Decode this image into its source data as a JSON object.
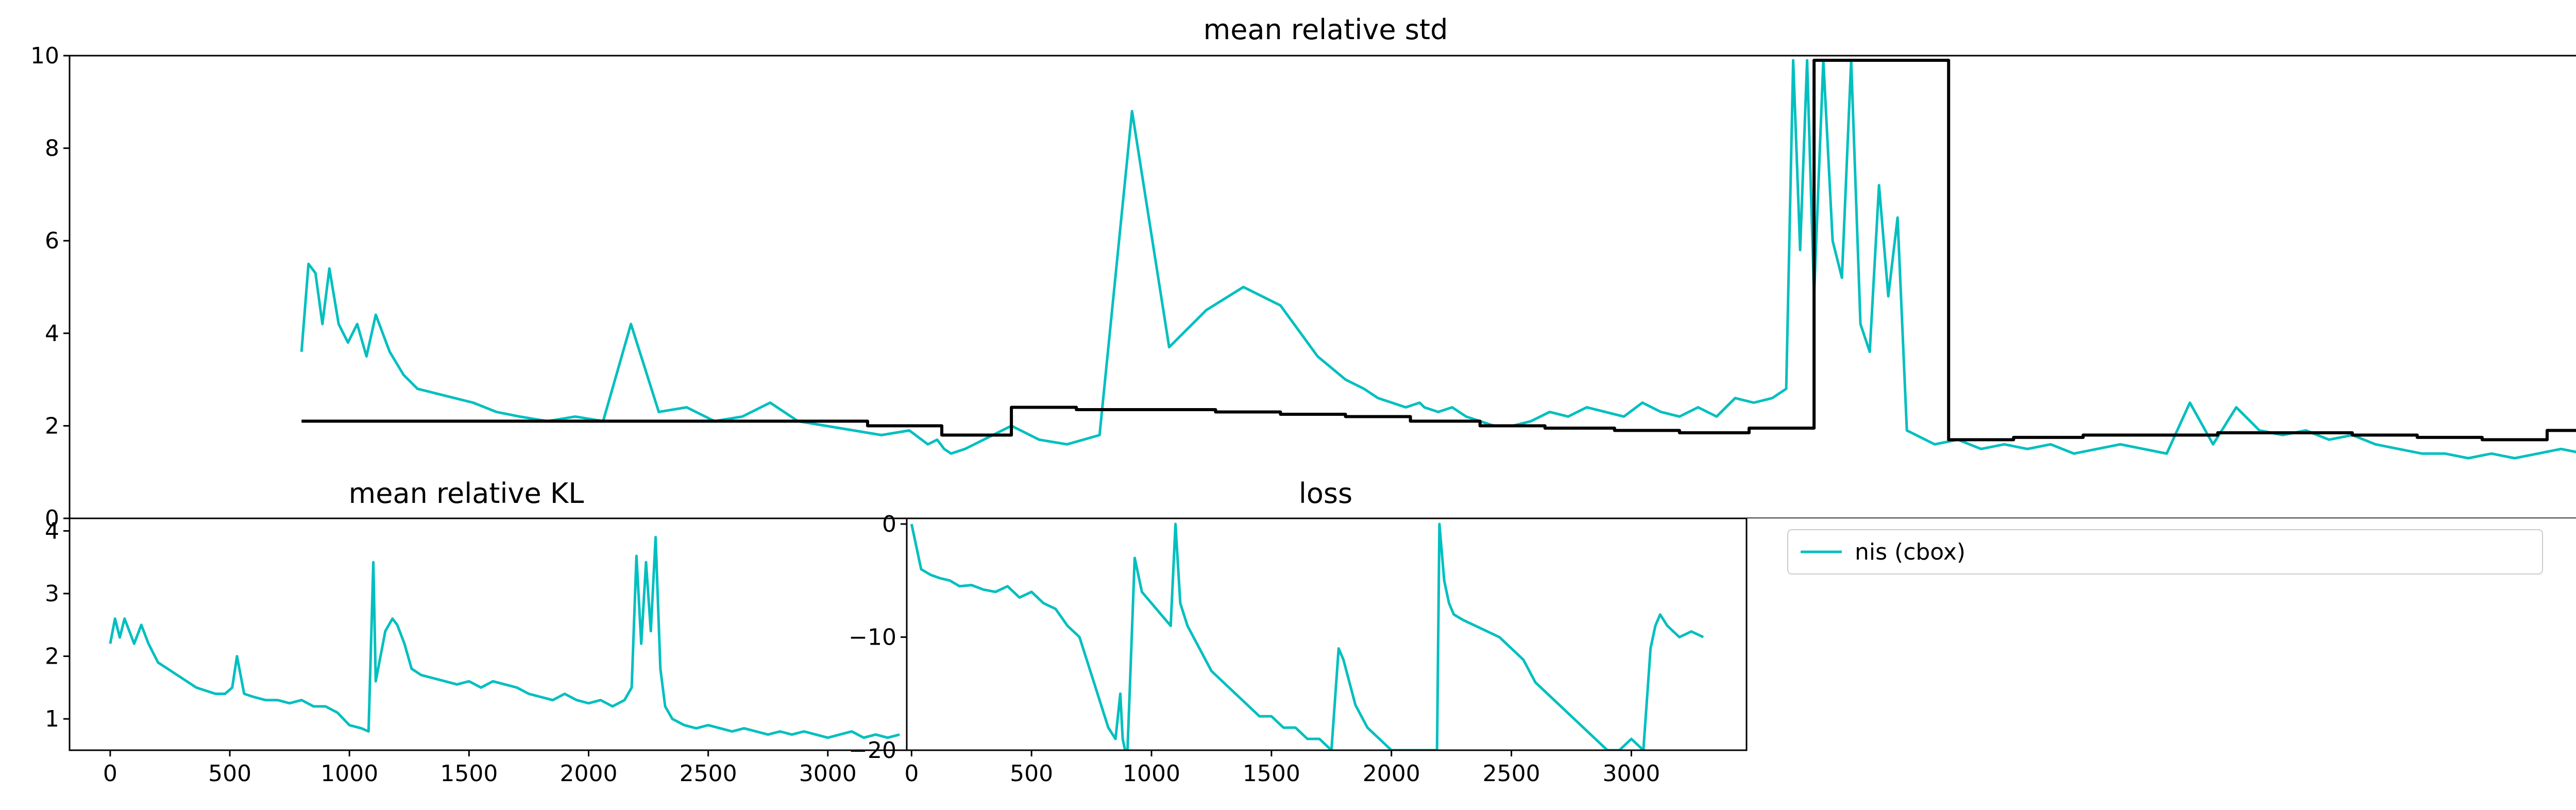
{
  "chart_data": [
    {
      "type": "line",
      "title": "mean relative std",
      "xlabel": "",
      "ylabel": "",
      "xlim": [
        -170,
        5260
      ],
      "ylim": [
        0,
        10
      ],
      "yticks": [
        "0",
        "2",
        "4",
        "6",
        "8",
        "10"
      ],
      "series": [
        {
          "name": "nis (cbox)",
          "color": "#00bfbf",
          "x": [
            330,
            345,
            360,
            375,
            390,
            410,
            430,
            450,
            470,
            490,
            520,
            550,
            580,
            620,
            660,
            700,
            750,
            800,
            860,
            920,
            980,
            1040,
            1100,
            1160,
            1220,
            1280,
            1340,
            1400,
            1460,
            1520,
            1580,
            1640,
            1680,
            1700,
            1715,
            1730,
            1760,
            1800,
            1860,
            1920,
            1980,
            2050,
            2120,
            2200,
            2280,
            2360,
            2440,
            2520,
            2580,
            2620,
            2650,
            2680,
            2710,
            2740,
            2750,
            2780,
            2810,
            2840,
            2870,
            2900,
            2940,
            2980,
            3020,
            3060,
            3100,
            3140,
            3180,
            3220,
            3260,
            3300,
            3340,
            3380,
            3420,
            3460,
            3500,
            3530,
            3545,
            3560,
            3575,
            3590,
            3610,
            3630,
            3650,
            3670,
            3690,
            3710,
            3730,
            3750,
            3770,
            3790,
            3810,
            3830,
            3850,
            3900,
            3950,
            4000,
            4050,
            4100,
            4150,
            4200,
            4250,
            4300,
            4350,
            4400,
            4450,
            4500,
            4550,
            4600,
            4650,
            4700,
            4750,
            4800,
            4850,
            4900,
            4950,
            5000,
            5050,
            5100,
            5150,
            5200,
            5250,
            5300
          ],
          "y": [
            3.6,
            5.5,
            5.3,
            4.2,
            5.4,
            4.2,
            3.8,
            4.2,
            3.5,
            4.4,
            3.6,
            3.1,
            2.8,
            2.7,
            2.6,
            2.5,
            2.3,
            2.2,
            2.1,
            2.2,
            2.1,
            4.2,
            2.3,
            2.4,
            2.1,
            2.2,
            2.5,
            2.1,
            2.0,
            1.9,
            1.8,
            1.9,
            1.6,
            1.7,
            1.5,
            1.4,
            1.5,
            1.7,
            2.0,
            1.7,
            1.6,
            1.8,
            8.8,
            3.7,
            4.5,
            5.0,
            4.6,
            3.5,
            3.0,
            2.8,
            2.6,
            2.5,
            2.4,
            2.5,
            2.4,
            2.3,
            2.4,
            2.2,
            2.1,
            2.0,
            2.0,
            2.1,
            2.3,
            2.2,
            2.4,
            2.3,
            2.2,
            2.5,
            2.3,
            2.2,
            2.4,
            2.2,
            2.6,
            2.5,
            2.6,
            2.8,
            9.9,
            5.8,
            9.9,
            4.8,
            9.9,
            6.0,
            5.2,
            9.9,
            4.2,
            3.6,
            7.2,
            4.8,
            6.5,
            1.9,
            1.8,
            1.7,
            1.6,
            1.7,
            1.5,
            1.6,
            1.5,
            1.6,
            1.4,
            1.5,
            1.6,
            1.5,
            1.4,
            2.5,
            1.6,
            2.4,
            1.9,
            1.8,
            1.9,
            1.7,
            1.8,
            1.6,
            1.5,
            1.4,
            1.4,
            1.3,
            1.4,
            1.3,
            1.4,
            1.5,
            1.4,
            1.4
          ]
        },
        {
          "name": "",
          "color": "#000000",
          "step": true,
          "x": [
            330,
            1550,
            1710,
            1860,
            2000,
            2150,
            2300,
            2440,
            2580,
            2720,
            2870,
            3010,
            3160,
            3300,
            3450,
            3590,
            3730,
            3880,
            4020,
            4170,
            4310,
            4460,
            4600,
            4750,
            4890,
            5030,
            5170,
            5300
          ],
          "y": [
            2.1,
            2.0,
            1.8,
            2.4,
            2.35,
            2.35,
            2.3,
            2.25,
            2.2,
            2.1,
            2.0,
            1.95,
            1.9,
            1.85,
            1.95,
            9.9,
            9.9,
            1.7,
            1.75,
            1.8,
            1.8,
            1.85,
            1.85,
            1.8,
            1.75,
            1.7,
            1.9,
            1.9
          ]
        }
      ]
    },
    {
      "type": "line",
      "title": "mean relative KL",
      "xlim": [
        -170,
        3330
      ],
      "ylim": [
        0.5,
        4.2
      ],
      "xticks": [
        "0",
        "500",
        "1000",
        "1500",
        "2000",
        "2500",
        "3000"
      ],
      "yticks": [
        "1",
        "2",
        "3",
        "4"
      ],
      "series": [
        {
          "name": "nis (cbox)",
          "color": "#00bfbf",
          "x": [
            0,
            20,
            40,
            60,
            80,
            100,
            130,
            160,
            200,
            240,
            280,
            320,
            360,
            400,
            440,
            480,
            510,
            530,
            560,
            600,
            650,
            700,
            750,
            800,
            850,
            900,
            950,
            1000,
            1050,
            1080,
            1100,
            1110,
            1130,
            1150,
            1180,
            1200,
            1230,
            1260,
            1300,
            1350,
            1400,
            1450,
            1500,
            1550,
            1600,
            1650,
            1700,
            1750,
            1800,
            1850,
            1900,
            1950,
            2000,
            2050,
            2100,
            2150,
            2180,
            2200,
            2220,
            2240,
            2260,
            2280,
            2300,
            2320,
            2350,
            2400,
            2450,
            2500,
            2550,
            2600,
            2650,
            2700,
            2750,
            2800,
            2850,
            2900,
            2950,
            3000,
            3050,
            3100,
            3150,
            3200,
            3250,
            3300
          ],
          "y": [
            2.2,
            2.6,
            2.3,
            2.6,
            2.4,
            2.2,
            2.5,
            2.2,
            1.9,
            1.8,
            1.7,
            1.6,
            1.5,
            1.45,
            1.4,
            1.4,
            1.5,
            2.0,
            1.4,
            1.35,
            1.3,
            1.3,
            1.25,
            1.3,
            1.2,
            1.2,
            1.1,
            0.9,
            0.85,
            0.8,
            3.5,
            1.6,
            2.0,
            2.4,
            2.6,
            2.5,
            2.2,
            1.8,
            1.7,
            1.65,
            1.6,
            1.55,
            1.6,
            1.5,
            1.6,
            1.55,
            1.5,
            1.4,
            1.35,
            1.3,
            1.4,
            1.3,
            1.25,
            1.3,
            1.2,
            1.3,
            1.5,
            3.6,
            2.2,
            3.5,
            2.4,
            3.9,
            1.8,
            1.2,
            1.0,
            0.9,
            0.85,
            0.9,
            0.85,
            0.8,
            0.85,
            0.8,
            0.75,
            0.8,
            0.75,
            0.8,
            0.75,
            0.7,
            0.75,
            0.8,
            0.7,
            0.75,
            0.7,
            0.75
          ]
        }
      ]
    },
    {
      "type": "line",
      "title": "loss",
      "xlim": [
        -20,
        3480
      ],
      "ylim": [
        -20,
        0.5
      ],
      "xticks": [
        "0",
        "500",
        "1000",
        "1500",
        "2000",
        "2500",
        "3000"
      ],
      "yticks": [
        "0",
        "−10",
        "−20"
      ],
      "series": [
        {
          "name": "nis (cbox)",
          "color": "#00bfbf",
          "x": [
            0,
            20,
            40,
            80,
            120,
            160,
            200,
            250,
            300,
            350,
            400,
            450,
            500,
            550,
            600,
            650,
            700,
            730,
            760,
            790,
            820,
            850,
            870,
            880,
            890,
            900,
            930,
            960,
            1000,
            1040,
            1080,
            1100,
            1120,
            1150,
            1200,
            1250,
            1300,
            1350,
            1400,
            1450,
            1500,
            1550,
            1600,
            1650,
            1700,
            1750,
            1780,
            1800,
            1850,
            1900,
            1950,
            2000,
            2020,
            2040,
            2060,
            2100,
            2150,
            2180,
            2190,
            2200,
            2220,
            2240,
            2260,
            2300,
            2350,
            2400,
            2450,
            2500,
            2550,
            2600,
            2650,
            2700,
            2750,
            2800,
            2850,
            2900,
            2950,
            3000,
            3050,
            3080,
            3100,
            3120,
            3150,
            3200,
            3250,
            3300
          ],
          "y": [
            0,
            -2,
            -4,
            -4.5,
            -4.8,
            -5,
            -5.5,
            -5.4,
            -5.8,
            -6,
            -5.5,
            -6.5,
            -6,
            -7,
            -7.5,
            -9,
            -10,
            -12,
            -14,
            -16,
            -18,
            -19,
            -15,
            -19,
            -20,
            -20,
            -3,
            -6,
            -7,
            -8,
            -9,
            0,
            -7,
            -9,
            -11,
            -13,
            -14,
            -15,
            -16,
            -17,
            -17,
            -18,
            -18,
            -19,
            -19,
            -20,
            -11,
            -12,
            -16,
            -18,
            -19,
            -20,
            -20,
            -20,
            -20,
            -20,
            -20,
            -20,
            -20,
            0,
            -5,
            -7,
            -8,
            -8.5,
            -9,
            -9.5,
            -10,
            -11,
            -12,
            -14,
            -15,
            -16,
            -17,
            -18,
            -19,
            -20,
            -20,
            -19,
            -20,
            -11,
            -9,
            -8,
            -9,
            -10,
            -9.5,
            -10
          ]
        }
      ]
    }
  ],
  "legend": {
    "entries": [
      {
        "label": "nis (cbox)",
        "color": "#00bfbf"
      }
    ]
  }
}
